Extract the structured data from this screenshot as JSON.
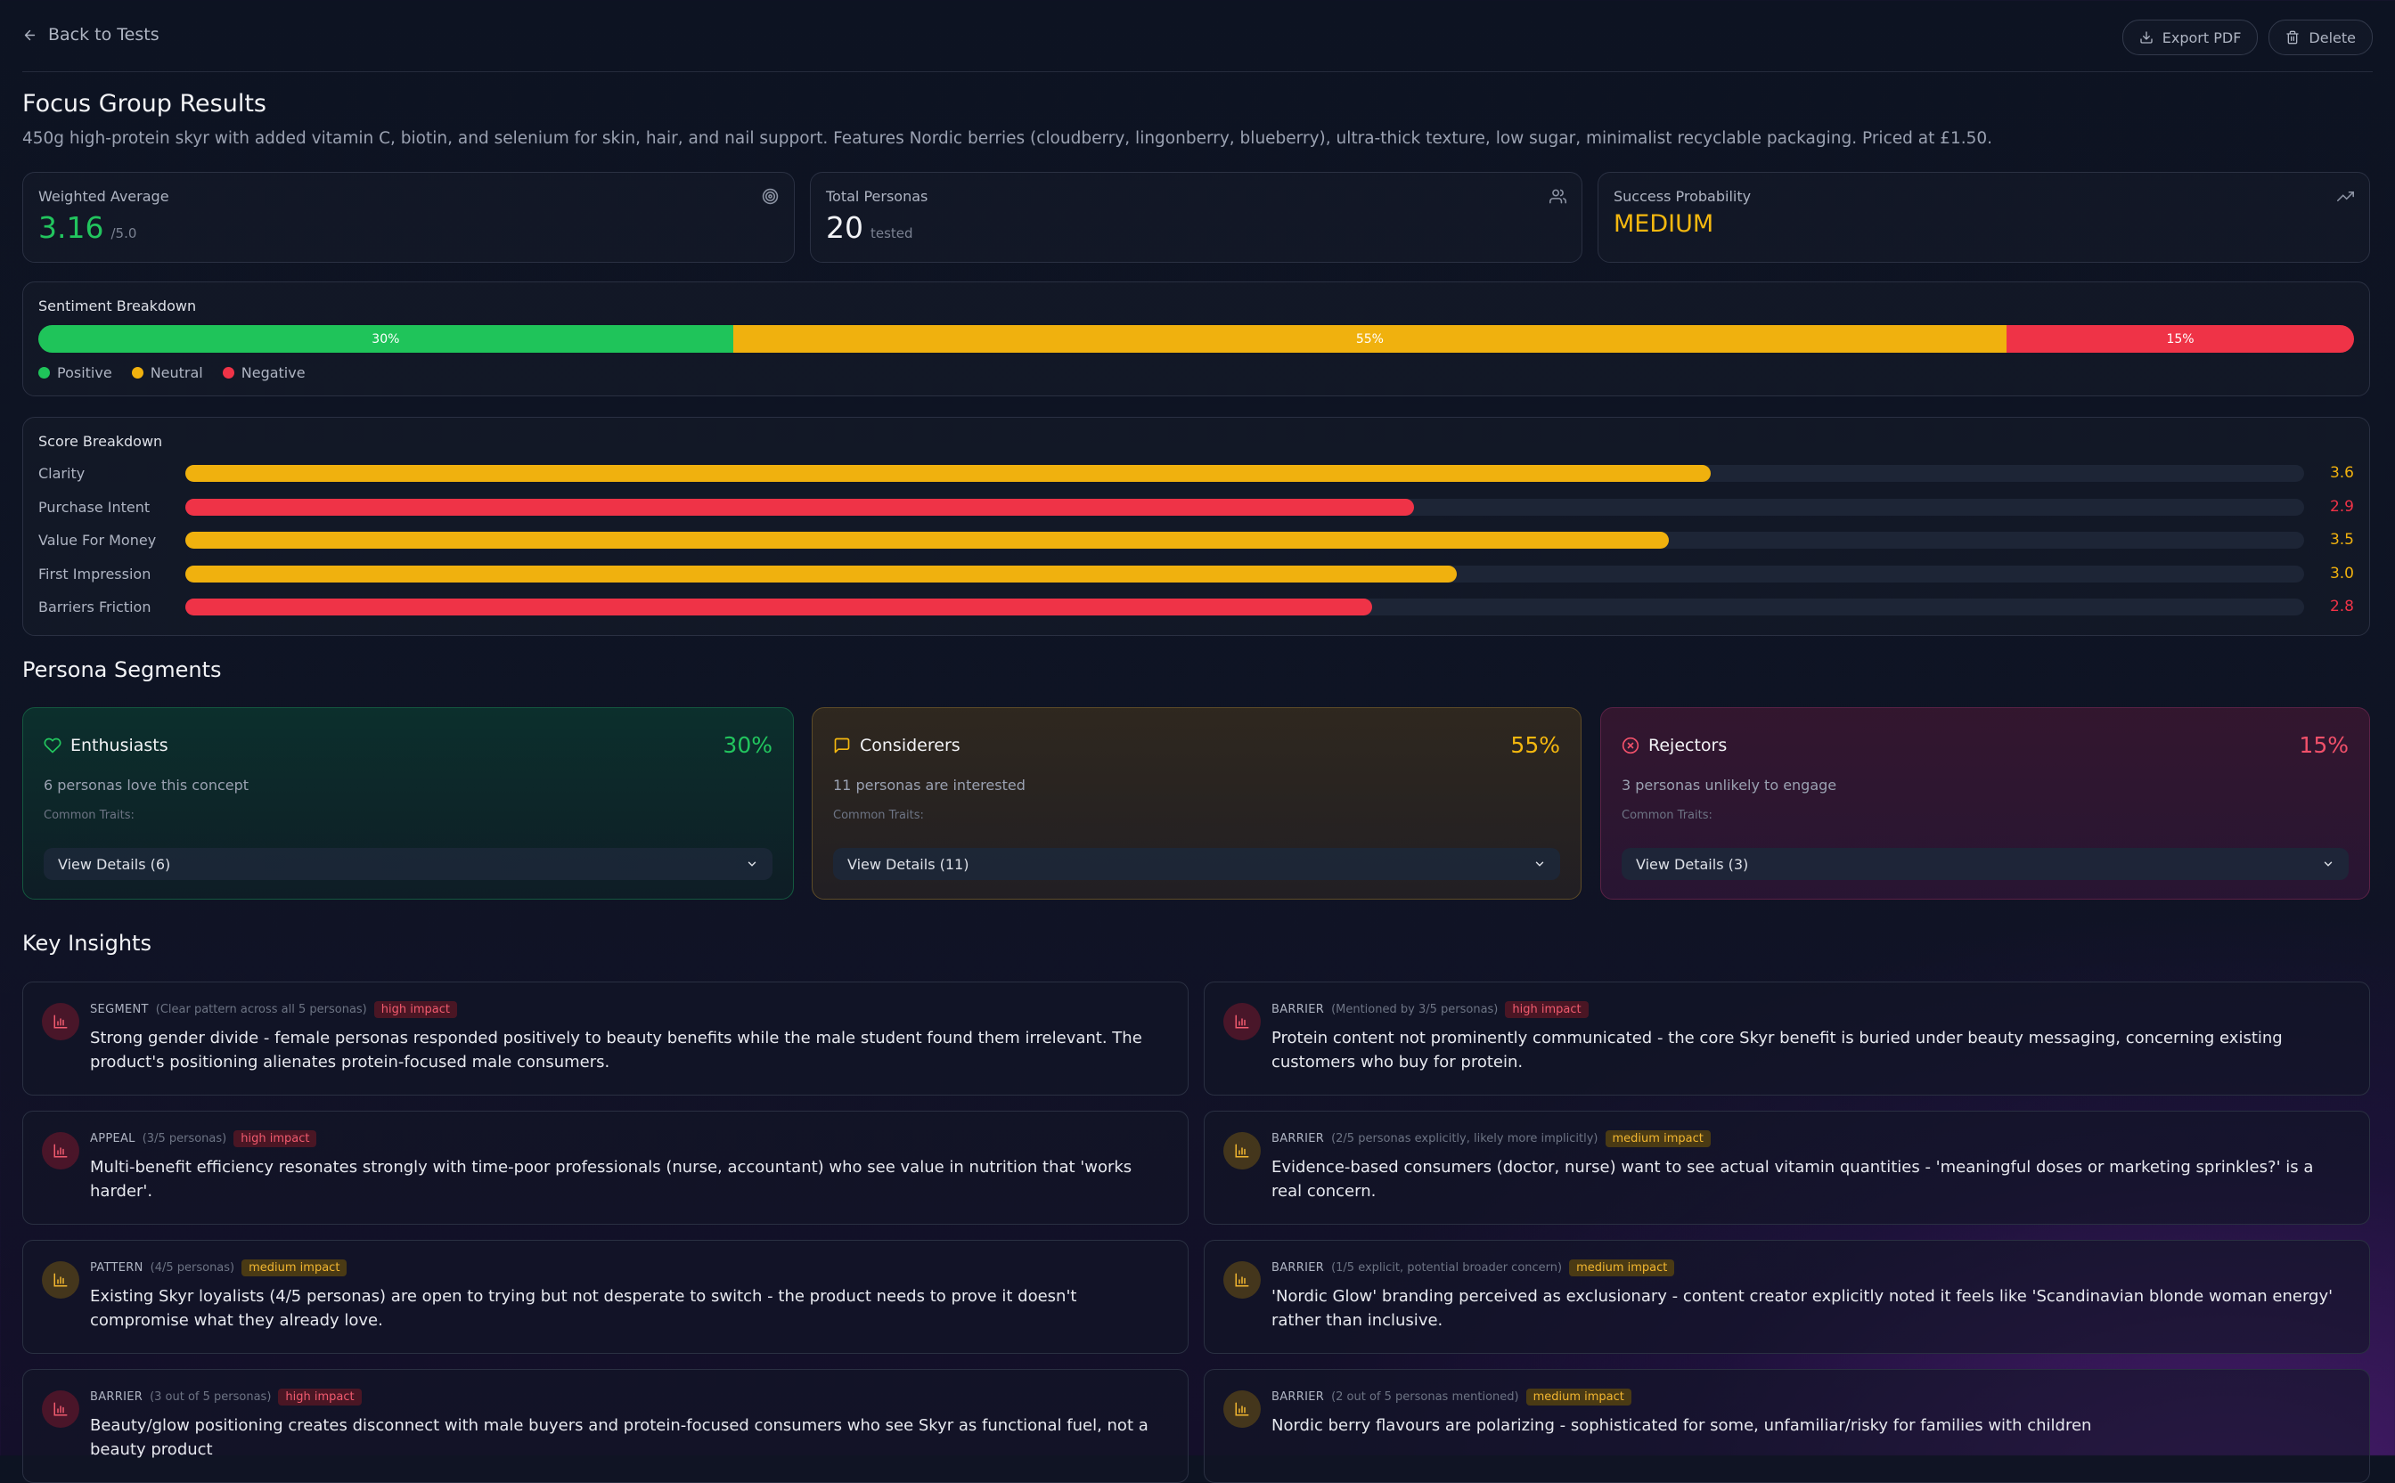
{
  "header": {
    "back_label": "Back to Tests",
    "export_label": "Export PDF",
    "delete_label": "Delete"
  },
  "page": {
    "title": "Focus Group Results",
    "description": "450g high-protein skyr with added vitamin C, biotin, and selenium for skin, hair, and nail support. Features Nordic berries (cloudberry, lingonberry, blueberry), ultra-thick texture, low sugar, minimalist recyclable packaging. Priced at £1.50."
  },
  "stats": {
    "weighted_average": {
      "label": "Weighted Average",
      "value": "3.16",
      "suffix": "/5.0",
      "icon": "target-icon"
    },
    "total_personas": {
      "label": "Total Personas",
      "value": "20",
      "suffix": "tested",
      "icon": "users-icon"
    },
    "success_probability": {
      "label": "Success Probability",
      "value": "MEDIUM",
      "icon": "trending-up-icon"
    }
  },
  "sentiment": {
    "title": "Sentiment Breakdown",
    "segments": [
      {
        "label": "Positive",
        "percent": 30,
        "text": "30%",
        "color": "#1fc45a"
      },
      {
        "label": "Neutral",
        "percent": 55,
        "text": "55%",
        "color": "#f0b10e"
      },
      {
        "label": "Negative",
        "percent": 15,
        "text": "15%",
        "color": "#ef3347"
      }
    ]
  },
  "scores": {
    "title": "Score Breakdown",
    "max": 5,
    "items": [
      {
        "label": "Clarity",
        "value": 3.6,
        "text": "3.6",
        "color": "#f0b10e"
      },
      {
        "label": "Purchase Intent",
        "value": 2.9,
        "text": "2.9",
        "color": "#ef3347"
      },
      {
        "label": "Value For Money",
        "value": 3.5,
        "text": "3.5",
        "color": "#f0b10e"
      },
      {
        "label": "First Impression",
        "value": 3.0,
        "text": "3.0",
        "color": "#f0b10e"
      },
      {
        "label": "Barriers Friction",
        "value": 2.8,
        "text": "2.8",
        "color": "#ef3347"
      }
    ]
  },
  "segments": {
    "title": "Persona Segments",
    "traits_label": "Common Traits:",
    "items": [
      {
        "name": "Enthusiasts",
        "percent": "30%",
        "desc": "6 personas love this concept",
        "button": "View Details (6)",
        "icon": "heart-icon",
        "color": "#22c55e"
      },
      {
        "name": "Considerers",
        "percent": "55%",
        "desc": "11 personas are interested",
        "button": "View Details (11)",
        "icon": "message-square-icon",
        "color": "#f5b80f"
      },
      {
        "name": "Rejectors",
        "percent": "15%",
        "desc": "3 personas unlikely to engage",
        "button": "View Details (3)",
        "icon": "x-circle-icon",
        "color": "#f0506a"
      }
    ]
  },
  "insights": {
    "title": "Key Insights",
    "items": [
      {
        "category": "SEGMENT",
        "note": "(Clear pattern across all 5 personas)",
        "impact": "high impact",
        "level": "high",
        "text": "Strong gender divide - female personas responded positively to beauty benefits while the male student found them irrelevant. The product's positioning alienates protein-focused male consumers."
      },
      {
        "category": "BARRIER",
        "note": "(Mentioned by 3/5 personas)",
        "impact": "high impact",
        "level": "high",
        "text": "Protein content not prominently communicated - the core Skyr benefit is buried under beauty messaging, concerning existing customers who buy for protein."
      },
      {
        "category": "APPEAL",
        "note": "(3/5 personas)",
        "impact": "high impact",
        "level": "high",
        "text": "Multi-benefit efficiency resonates strongly with time-poor professionals (nurse, accountant) who see value in nutrition that 'works harder'."
      },
      {
        "category": "BARRIER",
        "note": "(2/5 personas explicitly, likely more implicitly)",
        "impact": "medium impact",
        "level": "med",
        "text": "Evidence-based consumers (doctor, nurse) want to see actual vitamin quantities - 'meaningful doses or marketing sprinkles?' is a real concern."
      },
      {
        "category": "PATTERN",
        "note": "(4/5 personas)",
        "impact": "medium impact",
        "level": "med",
        "text": "Existing Skyr loyalists (4/5 personas) are open to trying but not desperate to switch - the product needs to prove it doesn't compromise what they already love."
      },
      {
        "category": "BARRIER",
        "note": "(1/5 explicit, potential broader concern)",
        "impact": "medium impact",
        "level": "med",
        "text": "'Nordic Glow' branding perceived as exclusionary - content creator explicitly noted it feels like 'Scandinavian blonde woman energy' rather than inclusive."
      },
      {
        "category": "BARRIER",
        "note": "(3 out of 5 personas)",
        "impact": "high impact",
        "level": "high",
        "text": "Beauty/glow positioning creates disconnect with male buyers and protein-focused consumers who see Skyr as functional fuel, not a beauty product"
      },
      {
        "category": "BARRIER",
        "note": "(2 out of 5 personas mentioned)",
        "impact": "medium impact",
        "level": "med",
        "text": "Nordic berry flavours are polarizing - sophisticated for some, unfamiliar/risky for families with children"
      }
    ]
  }
}
